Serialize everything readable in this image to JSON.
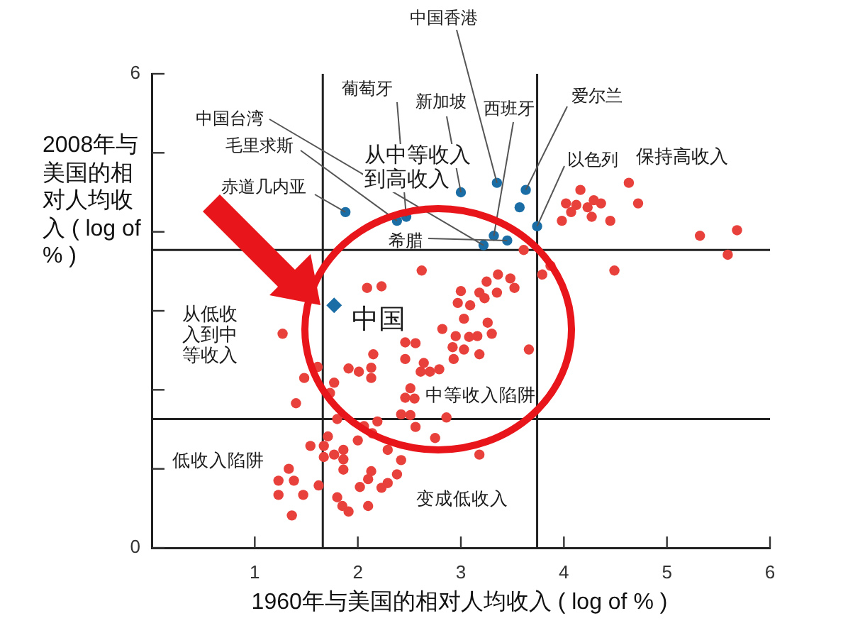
{
  "chart_data": {
    "type": "scatter",
    "xlabel": "1960年与美国的相对人均收入 ( log of % )",
    "ylabel": "2008年与美国的相对人均收入 ( log of % )",
    "xlim": [
      0,
      6
    ],
    "xticks": [
      1,
      2,
      3,
      4,
      5,
      6
    ],
    "ylim": [
      0,
      6
    ],
    "yticks": [
      0,
      {
        "value": 1,
        "label": null
      },
      {
        "value": 2,
        "label": null
      },
      {
        "value": 3,
        "label": null
      },
      {
        "value": 4,
        "label": null
      },
      {
        "value": 5,
        "label": null
      },
      6
    ],
    "grid": false,
    "legend": false,
    "marker": "circle",
    "series": [
      {
        "color": "#e8413c",
        "x": [
          4.63,
          4.16,
          4.72,
          4.02,
          4.12,
          4.23,
          4.29,
          4.36,
          4.07,
          4.27,
          4.45,
          3.98,
          5.32,
          5.68,
          5.59,
          4.49,
          3.79,
          3.87,
          3.61,
          3.36,
          3.48,
          3.25,
          3.52,
          3.0,
          3.18,
          3.35,
          3.23,
          2.97,
          3.09,
          3.03,
          2.82,
          3.26,
          3.3,
          2.95,
          3.08,
          3.16,
          2.92,
          3.03,
          3.66,
          3.18,
          2.93,
          2.79,
          2.7,
          2.86,
          2.75,
          3.18,
          2.62,
          2.09,
          2.23,
          1.27,
          2.46,
          2.56,
          2.15,
          2.46,
          2.64,
          1.91,
          2.01,
          2.13,
          2.13,
          2.61,
          1.61,
          1.48,
          1.77,
          2.51,
          2.46,
          2.55,
          1.73,
          1.4,
          2.42,
          2.51,
          2.19,
          2.06,
          2.56,
          1.8,
          2.14,
          1.71,
          2.0,
          1.54,
          1.67,
          1.86,
          1.77,
          1.67,
          2.29,
          2.42,
          1.86,
          1.33,
          1.86,
          2.13,
          2.38,
          1.23,
          1.38,
          2.1,
          2.29,
          2.23,
          1.62,
          2.02,
          1.23,
          1.47,
          1.8,
          2.1,
          1.85,
          1.91,
          1.36
        ],
        "values": [
          4.62,
          4.53,
          4.36,
          4.36,
          4.34,
          4.31,
          4.4,
          4.36,
          4.25,
          4.19,
          4.14,
          4.14,
          3.95,
          4.02,
          3.71,
          3.51,
          3.46,
          3.57,
          3.77,
          3.46,
          3.41,
          3.37,
          3.29,
          3.25,
          3.23,
          3.23,
          3.16,
          3.1,
          3.07,
          2.9,
          2.77,
          2.85,
          2.71,
          2.68,
          2.67,
          2.68,
          2.54,
          2.51,
          2.51,
          2.45,
          2.39,
          2.26,
          2.23,
          1.65,
          1.39,
          1.18,
          3.51,
          3.29,
          3.31,
          2.71,
          2.6,
          2.59,
          2.45,
          2.39,
          2.34,
          2.27,
          2.23,
          2.28,
          2.15,
          2.23,
          2.29,
          2.15,
          2.09,
          2.02,
          1.9,
          1.89,
          1.96,
          1.83,
          1.69,
          1.68,
          1.6,
          1.54,
          1.53,
          1.63,
          1.45,
          1.41,
          1.36,
          1.29,
          1.29,
          1.24,
          1.18,
          1.15,
          1.24,
          1.11,
          1.12,
          1.0,
          0.99,
          0.97,
          0.93,
          0.85,
          0.85,
          0.87,
          0.82,
          0.76,
          0.79,
          0.77,
          0.67,
          0.67,
          0.64,
          0.53,
          0.53,
          0.46,
          0.41
        ]
      },
      {
        "color": "#1b6ea5",
        "x": [
          1.88,
          2.38,
          2.47,
          3.0,
          3.35,
          3.63,
          3.57,
          3.74,
          3.32,
          3.45,
          3.22
        ],
        "values": [
          4.25,
          4.14,
          4.19,
          4.5,
          4.62,
          4.53,
          4.31,
          4.07,
          3.95,
          3.89,
          3.83
        ]
      },
      {
        "color": "#1b6ea5",
        "marker": "diamond",
        "x": [
          1.77
        ],
        "values": [
          3.07
        ]
      }
    ],
    "ref_lines": [
      {
        "axis": "x",
        "value": 1.66
      },
      {
        "axis": "x",
        "value": 3.74
      },
      {
        "axis": "y",
        "value": 1.63
      },
      {
        "axis": "y",
        "value": 3.77
      }
    ],
    "annotations": [
      {
        "text": "中国",
        "x": 1.77,
        "y": 3.07
      },
      {
        "text": "中国香港",
        "x": 3.35,
        "y": 4.62
      },
      {
        "text": "葡萄牙",
        "x": 2.47,
        "y": 4.19
      },
      {
        "text": "新加坡",
        "x": 3.0,
        "y": 4.5
      },
      {
        "text": "西班牙",
        "x": 3.32,
        "y": 3.95
      },
      {
        "text": "爱尔兰",
        "x": 3.63,
        "y": 4.53
      },
      {
        "text": "中国台湾",
        "x": 3.22,
        "y": 3.83
      },
      {
        "text": "毛里求斯",
        "x": 2.38,
        "y": 4.14
      },
      {
        "text": "以色列",
        "x": 3.74,
        "y": 4.07
      },
      {
        "text": "赤道几内亚",
        "x": 1.88,
        "y": 4.25
      },
      {
        "text": "希腊",
        "x": 3.45,
        "y": 3.89
      },
      "从中等收入到高收入",
      "保持高收入",
      "从低收入到中等收入",
      "中等收入陷阱",
      "低收入陷阱",
      "变成低收入"
    ]
  }
}
